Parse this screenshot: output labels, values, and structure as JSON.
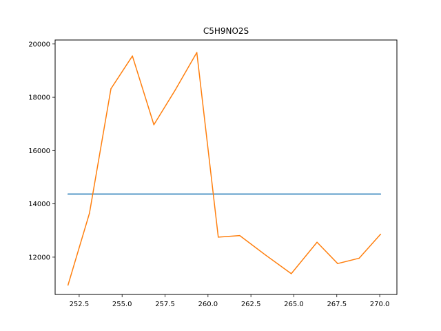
{
  "chart_data": {
    "type": "line",
    "title": "C5H9NO2S",
    "xlabel": "",
    "ylabel": "",
    "xlim": [
      251.1,
      271.0
    ],
    "ylim": [
      10600,
      20150
    ],
    "grid": false,
    "x_ticks": [
      252.5,
      255.0,
      257.5,
      260.0,
      262.5,
      265.0,
      267.5,
      270.0
    ],
    "x_tick_labels": [
      "252.5",
      "255.0",
      "257.5",
      "260.0",
      "262.5",
      "265.0",
      "267.5",
      "270.0"
    ],
    "y_ticks": [
      12000,
      14000,
      16000,
      18000,
      20000
    ],
    "y_tick_labels": [
      "12000",
      "14000",
      "16000",
      "18000",
      "20000"
    ],
    "series": [
      {
        "color": "#1f77b4",
        "x": [
          251.85,
          270.05
        ],
        "y": [
          14370,
          14370
        ]
      },
      {
        "color": "#ff7f0e",
        "x": [
          251.85,
          253.1,
          254.35,
          255.6,
          256.85,
          258.1,
          259.35,
          260.6,
          261.85,
          263.35,
          264.85,
          266.35,
          267.55,
          268.8,
          270.05
        ],
        "y": [
          10950,
          13650,
          18320,
          19550,
          16970,
          18280,
          19680,
          12750,
          12810,
          12080,
          11380,
          12560,
          11760,
          11960,
          12860
        ]
      }
    ]
  }
}
